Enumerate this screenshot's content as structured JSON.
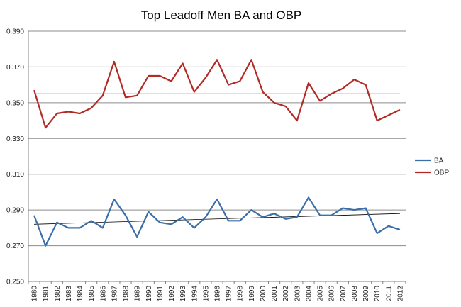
{
  "chart_data": {
    "type": "line",
    "title": "Top Leadoff Men BA and OBP",
    "xlabel": "",
    "ylabel": "",
    "ylim": [
      0.25,
      0.39
    ],
    "yticks": [
      "0.250",
      "0.270",
      "0.290",
      "0.310",
      "0.330",
      "0.350",
      "0.370",
      "0.390"
    ],
    "grid": true,
    "legend_position": "right",
    "categories": [
      "1980",
      "1981",
      "1982",
      "1983",
      "1984",
      "1985",
      "1986",
      "1987",
      "1988",
      "1989",
      "1990",
      "1991",
      "1992",
      "1993",
      "1994",
      "1995",
      "1996",
      "1997",
      "1998",
      "1999",
      "2000",
      "2001",
      "2002",
      "2003",
      "2004",
      "2005",
      "2006",
      "2007",
      "2008",
      "2009",
      "2010",
      "2011",
      "2012"
    ],
    "series": [
      {
        "name": "BA",
        "color": "#3a6fa8",
        "values": [
          0.287,
          0.27,
          0.283,
          0.28,
          0.28,
          0.284,
          0.28,
          0.296,
          0.287,
          0.275,
          0.289,
          0.283,
          0.282,
          0.286,
          0.28,
          0.286,
          0.296,
          0.284,
          0.284,
          0.29,
          0.286,
          0.288,
          0.285,
          0.286,
          0.297,
          0.287,
          0.287,
          0.291,
          0.29,
          0.291,
          0.277,
          0.281,
          0.279
        ]
      },
      {
        "name": "OBP",
        "color": "#b22a26",
        "values": [
          0.357,
          0.336,
          0.344,
          0.345,
          0.344,
          0.347,
          0.354,
          0.373,
          0.353,
          0.354,
          0.365,
          0.365,
          0.362,
          0.372,
          0.356,
          0.364,
          0.374,
          0.36,
          0.362,
          0.374,
          0.356,
          0.35,
          0.348,
          0.34,
          0.361,
          0.351,
          0.355,
          0.358,
          0.363,
          0.36,
          0.34,
          0.343,
          0.346
        ]
      }
    ],
    "trendlines": [
      {
        "series": "BA",
        "start": 0.282,
        "end": 0.288
      },
      {
        "series": "OBP",
        "start": 0.355,
        "end": 0.355
      }
    ]
  }
}
